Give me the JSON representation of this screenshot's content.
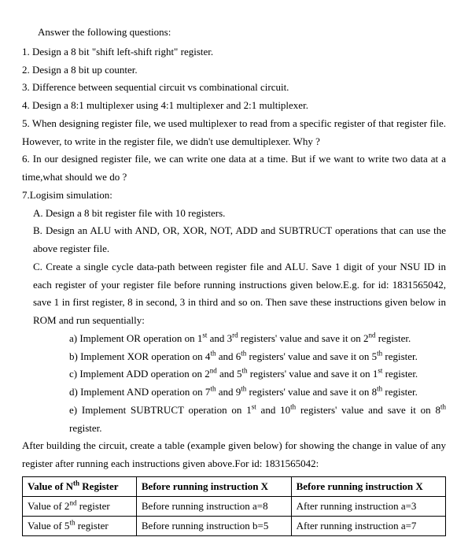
{
  "header": "Answer the following questions:",
  "q1": "1. Design a 8 bit \"shift left-shift right\" register.",
  "q2": "2. Design a 8 bit up counter.",
  "q3": "3. Difference between sequential circuit vs combinational circuit.",
  "q4": "4. Design a 8:1 multiplexer using 4:1 multiplexer and 2:1 multiplexer.",
  "q5": "5. When designing register file, we used multiplexer to read from a specific register of that register file. However, to write in the register file, we didn't use demultiplexer. Why ?",
  "q6": "6. In our designed register file, we can write one data at a time. But if we want to write two data at a time,what should we do ?",
  "q7": "7.Logisim simulation:",
  "q7a": "A. Design a 8 bit register file with 10 registers.",
  "q7b": "B. Design an ALU with AND, OR, XOR, NOT, ADD and SUBTRUCT operations that can use the above register file.",
  "q7c_lead": "C. Create a single cycle data-path between register file and ALU. Save 1 digit of your NSU ID in each register of your register file before running instructions given below.E.g. for id: 1831565042, save 1 in first register, 8 in second, 3 in third and so on. Then save these instructions given below in ROM  and run sequentially:",
  "after": "After building the circuit, create a table (example given below) for showing the change in value of any register after running each instructions given above.For id: 1831565042:",
  "table": {
    "h1_pre": "Value of N",
    "h1_sup": "th",
    "h1_post": " Register",
    "h2": "Before running instruction X",
    "h3": "Before running instruction X",
    "r1c1_pre": "Value of 2",
    "r1c1_sup": "nd",
    "r1c1_post": " register",
    "r1c2": "Before running instruction a=8",
    "r1c3": "After running instruction a=3",
    "r2c1_pre": "Value of 5",
    "r2c1_sup": "th",
    "r2c1_post": " register",
    "r2c2": "Before running instruction b=5",
    "r2c3": "After running instruction a=7"
  }
}
